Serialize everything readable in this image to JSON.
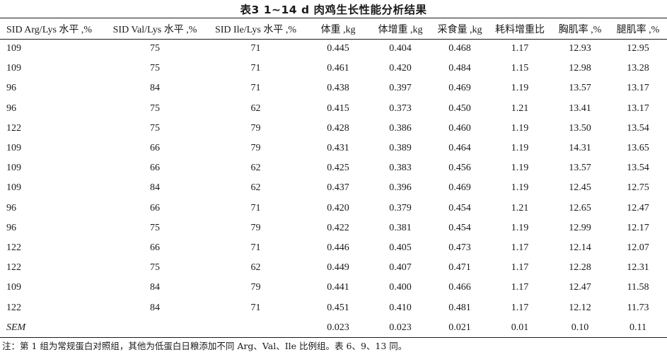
{
  "title": "表3  1~14 d 肉鸡生长性能分析结果",
  "headers": [
    "SID Arg/Lys 水平 ,%",
    "SID Val/Lys 水平 ,%",
    "SID Ile/Lys 水平 ,%",
    "体重 ,kg",
    "体增重 ,kg",
    "采食量 ,kg",
    "耗料增重比",
    "胸肌率 ,%",
    "腿肌率 ,%"
  ],
  "rows": [
    [
      "109",
      "75",
      "71",
      "0.445",
      "0.404",
      "0.468",
      "1.17",
      "12.93",
      "12.95"
    ],
    [
      "109",
      "75",
      "71",
      "0.461",
      "0.420",
      "0.484",
      "1.15",
      "12.98",
      "13.28"
    ],
    [
      "96",
      "84",
      "71",
      "0.438",
      "0.397",
      "0.469",
      "1.19",
      "13.57",
      "13.17"
    ],
    [
      "96",
      "75",
      "62",
      "0.415",
      "0.373",
      "0.450",
      "1.21",
      "13.41",
      "13.17"
    ],
    [
      "122",
      "75",
      "79",
      "0.428",
      "0.386",
      "0.460",
      "1.19",
      "13.50",
      "13.54"
    ],
    [
      "109",
      "66",
      "79",
      "0.431",
      "0.389",
      "0.464",
      "1.19",
      "14.31",
      "13.65"
    ],
    [
      "109",
      "66",
      "62",
      "0.425",
      "0.383",
      "0.456",
      "1.19",
      "13.57",
      "13.54"
    ],
    [
      "109",
      "84",
      "62",
      "0.437",
      "0.396",
      "0.469",
      "1.19",
      "12.45",
      "12.75"
    ],
    [
      "96",
      "66",
      "71",
      "0.420",
      "0.379",
      "0.454",
      "1.21",
      "12.65",
      "12.47"
    ],
    [
      "96",
      "75",
      "79",
      "0.422",
      "0.381",
      "0.454",
      "1.19",
      "12.99",
      "12.17"
    ],
    [
      "122",
      "66",
      "71",
      "0.446",
      "0.405",
      "0.473",
      "1.17",
      "12.14",
      "12.07"
    ],
    [
      "122",
      "75",
      "62",
      "0.449",
      "0.407",
      "0.471",
      "1.17",
      "12.28",
      "12.31"
    ],
    [
      "109",
      "84",
      "79",
      "0.441",
      "0.400",
      "0.466",
      "1.17",
      "12.47",
      "11.58"
    ],
    [
      "122",
      "84",
      "71",
      "0.451",
      "0.410",
      "0.481",
      "1.17",
      "12.12",
      "11.73"
    ]
  ],
  "sem_row": [
    "SEM",
    "",
    "",
    "0.023",
    "0.023",
    "0.021",
    "0.01",
    "0.10",
    "0.11"
  ],
  "note": "注：第 1 组为常规蛋白对照组，其他为低蛋白日粮添加不同 Arg、Val、Ile 比例组。表 6、9、13 同。"
}
